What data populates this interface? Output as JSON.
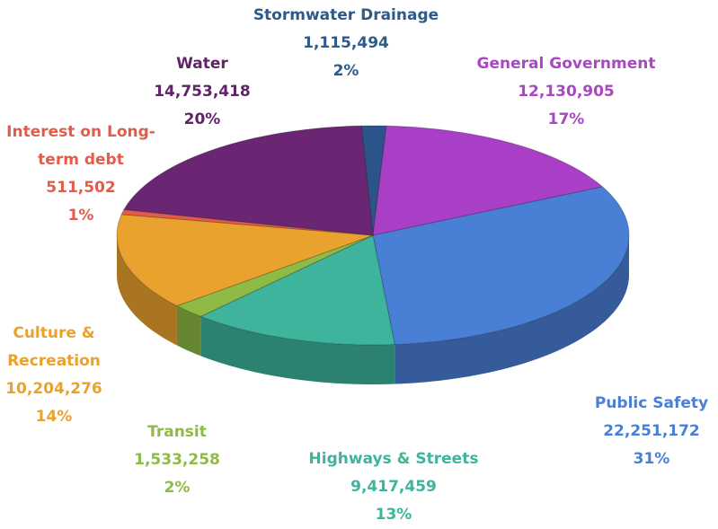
{
  "chart_data": {
    "type": "pie",
    "categories": [
      "Stormwater Drainage",
      "General Government",
      "Public Safety",
      "Highways & Streets",
      "Transit",
      "Culture & Recreation",
      "Interest on Long-term debt",
      "Water"
    ],
    "values": [
      1115494,
      12130905,
      22251172,
      9417459,
      1533258,
      10204276,
      511502,
      14753418
    ],
    "value_labels": [
      "1,115,494",
      "12,130,905",
      "22,251,172",
      "9,417,459",
      "1,533,258",
      "10,204,276",
      "511,502",
      "14,753,418"
    ],
    "percents": [
      2,
      17,
      31,
      13,
      2,
      14,
      1,
      20
    ],
    "percent_labels": [
      "2%",
      "17%",
      "31%",
      "13%",
      "2%",
      "14%",
      "1%",
      "20%"
    ],
    "colors": [
      "#2b5589",
      "#a83fc6",
      "#4a7fd6",
      "#3db49b",
      "#8fba45",
      "#eaa22f",
      "#e35c4a",
      "#6a2672"
    ]
  }
}
